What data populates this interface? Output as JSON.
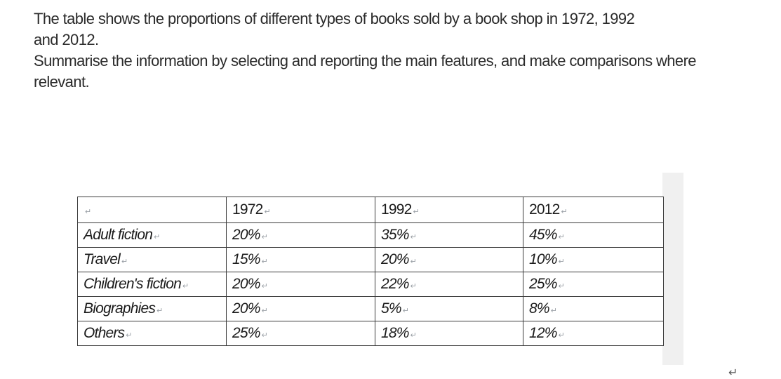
{
  "prompt": {
    "line1": "The table shows the proportions of different types of books sold by a book shop in 1972, 1992",
    "line1b": "and 2012.",
    "line2": "Summarise the information by selecting and reporting the main features, and make comparisons where",
    "line2b": "relevant."
  },
  "table": {
    "headers": [
      "",
      "1972",
      "1992",
      "2012"
    ],
    "rows": [
      {
        "category": "Adult fiction",
        "y1972": "20%",
        "y1992": "35%",
        "y2012": "45%"
      },
      {
        "category": "Travel",
        "y1972": "15%",
        "y1992": "20%",
        "y2012": "10%"
      },
      {
        "category": "Children's fiction",
        "y1972": "20%",
        "y1992": "22%",
        "y2012": "25%"
      },
      {
        "category": "Biographies",
        "y1972": "20%",
        "y1992": "5%",
        "y2012": "8%"
      },
      {
        "category": "Others",
        "y1972": "25%",
        "y1992": "18%",
        "y2012": "12%"
      }
    ]
  },
  "marks": {
    "cell_mark": "↵",
    "return_mark": "↵"
  }
}
